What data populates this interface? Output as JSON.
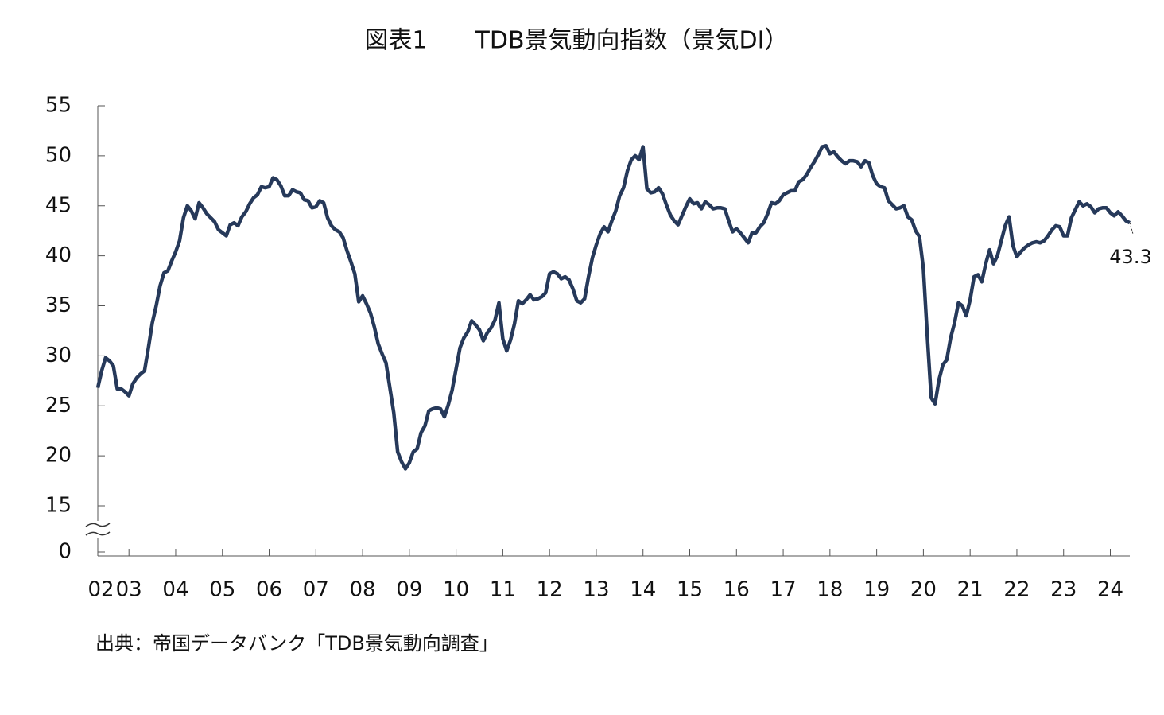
{
  "chart_data": {
    "type": "line",
    "title": "図表1　　TDB景気動向指数（景気DI）",
    "source": "出典：帝国データバンク「TDB景気動向調査」",
    "color": "#26395a",
    "ylim": [
      0,
      55
    ],
    "yticks": [
      0,
      15,
      20,
      25,
      30,
      35,
      40,
      45,
      50,
      55
    ],
    "axis_break": [
      0,
      15
    ],
    "categories": [
      "02",
      null,
      null,
      null,
      null,
      null,
      null,
      null,
      "03",
      null,
      null,
      null,
      null,
      null,
      null,
      null,
      null,
      null,
      null,
      null,
      "04",
      null,
      null,
      null,
      null,
      null,
      null,
      null,
      null,
      null,
      null,
      null,
      "05",
      null,
      null,
      null,
      null,
      null,
      null,
      null,
      null,
      null,
      null,
      null,
      "06",
      null,
      null,
      null,
      null,
      null,
      null,
      null,
      null,
      null,
      null,
      null,
      "07",
      null,
      null,
      null,
      null,
      null,
      null,
      null,
      null,
      null,
      null,
      null,
      "08",
      null,
      null,
      null,
      null,
      null,
      null,
      null,
      null,
      null,
      null,
      null,
      "09",
      null,
      null,
      null,
      null,
      null,
      null,
      null,
      null,
      null,
      null,
      null,
      "10",
      null,
      null,
      null,
      null,
      null,
      null,
      null,
      null,
      null,
      null,
      null,
      "11",
      null,
      null,
      null,
      null,
      null,
      null,
      null,
      null,
      null,
      null,
      null,
      "12",
      null,
      null,
      null,
      null,
      null,
      null,
      null,
      null,
      null,
      null,
      null,
      "13",
      null,
      null,
      null,
      null,
      null,
      null,
      null,
      null,
      null,
      null,
      null,
      "14",
      null,
      null,
      null,
      null,
      null,
      null,
      null,
      null,
      null,
      null,
      null,
      "15",
      null,
      null,
      null,
      null,
      null,
      null,
      null,
      null,
      null,
      null,
      null,
      "16",
      null,
      null,
      null,
      null,
      null,
      null,
      null,
      null,
      null,
      null,
      null,
      "17",
      null,
      null,
      null,
      null,
      null,
      null,
      null,
      null,
      null,
      null,
      null,
      "18",
      null,
      null,
      null,
      null,
      null,
      null,
      null,
      null,
      null,
      null,
      null,
      "19",
      null,
      null,
      null,
      null,
      null,
      null,
      null,
      null,
      null,
      null,
      null,
      "20",
      null,
      null,
      null,
      null,
      null,
      null,
      null,
      null,
      null,
      null,
      null,
      "21",
      null,
      null,
      null,
      null,
      null,
      null,
      null,
      null,
      null,
      null,
      null,
      "22",
      null,
      null,
      null,
      null,
      null,
      null,
      null,
      null,
      null,
      null,
      null,
      "23",
      null,
      null,
      null,
      null,
      null,
      null,
      null,
      null,
      null,
      null,
      null,
      "24",
      null,
      null,
      null,
      null,
      null
    ],
    "values": [
      26.8,
      28.5,
      29.8,
      29.5,
      29.0,
      26.7,
      26.7,
      26.4,
      26.0,
      27.2,
      27.8,
      28.2,
      28.5,
      30.8,
      33.3,
      35.0,
      37.0,
      38.3,
      38.5,
      39.5,
      40.4,
      41.5,
      43.8,
      45.0,
      44.5,
      43.7,
      45.3,
      44.8,
      44.2,
      43.8,
      43.4,
      42.6,
      42.3,
      42.0,
      43.1,
      43.3,
      43.0,
      43.9,
      44.4,
      45.2,
      45.8,
      46.1,
      46.9,
      46.8,
      46.9,
      47.8,
      47.6,
      47.0,
      46.0,
      46.0,
      46.6,
      46.4,
      46.3,
      45.6,
      45.5,
      44.8,
      44.9,
      45.5,
      45.3,
      43.8,
      43.0,
      42.6,
      42.4,
      41.8,
      40.5,
      39.4,
      38.2,
      35.4,
      36.0,
      35.2,
      34.3,
      32.9,
      31.2,
      30.2,
      29.3,
      26.8,
      24.3,
      20.4,
      19.4,
      18.7,
      19.3,
      20.4,
      20.7,
      22.3,
      23.0,
      24.5,
      24.7,
      24.8,
      24.7,
      23.9,
      25.1,
      26.6,
      28.7,
      30.8,
      31.8,
      32.4,
      33.5,
      33.1,
      32.6,
      31.5,
      32.3,
      32.8,
      33.6,
      35.3,
      31.7,
      30.5,
      31.6,
      33.2,
      35.5,
      35.2,
      35.6,
      36.1,
      35.6,
      35.7,
      35.9,
      36.3,
      38.2,
      38.4,
      38.2,
      37.7,
      37.9,
      37.6,
      36.7,
      35.5,
      35.3,
      35.7,
      37.9,
      39.8,
      41.1,
      42.2,
      42.9,
      42.4,
      43.5,
      44.5,
      46.0,
      46.8,
      48.5,
      49.6,
      50.0,
      49.6,
      50.9,
      46.7,
      46.3,
      46.4,
      46.8,
      46.2,
      45.1,
      44.1,
      43.5,
      43.1,
      44.0,
      44.9,
      45.7,
      45.2,
      45.3,
      44.7,
      45.4,
      45.1,
      44.7,
      44.8,
      44.8,
      44.7,
      43.5,
      42.4,
      42.7,
      42.3,
      41.8,
      41.3,
      42.3,
      42.3,
      42.9,
      43.3,
      44.2,
      45.3,
      45.2,
      45.5,
      46.1,
      46.3,
      46.5,
      46.5,
      47.4,
      47.6,
      48.1,
      48.8,
      49.4,
      50.1,
      50.9,
      51.0,
      50.2,
      50.4,
      49.9,
      49.5,
      49.2,
      49.5,
      49.5,
      49.4,
      48.9,
      49.5,
      49.3,
      48.0,
      47.2,
      46.9,
      46.8,
      45.5,
      45.1,
      44.7,
      44.8,
      45.0,
      43.9,
      43.6,
      42.5,
      41.9,
      38.7,
      32.0,
      25.8,
      25.2,
      27.6,
      29.1,
      29.6,
      31.8,
      33.3,
      35.3,
      35.0,
      34.0,
      35.6,
      37.9,
      38.1,
      37.4,
      39.2,
      40.6,
      39.2,
      40.0,
      41.5,
      43.0,
      43.9,
      41.0,
      39.9,
      40.4,
      40.8,
      41.1,
      41.3,
      41.4,
      41.3,
      41.5,
      42.0,
      42.6,
      43.0,
      42.9,
      42.0,
      42.0,
      43.8,
      44.6,
      45.4,
      45.0,
      45.2,
      44.9,
      44.3,
      44.7,
      44.8,
      44.8,
      44.3,
      44.0,
      44.4,
      44.0,
      43.5,
      43.3
    ]
  }
}
